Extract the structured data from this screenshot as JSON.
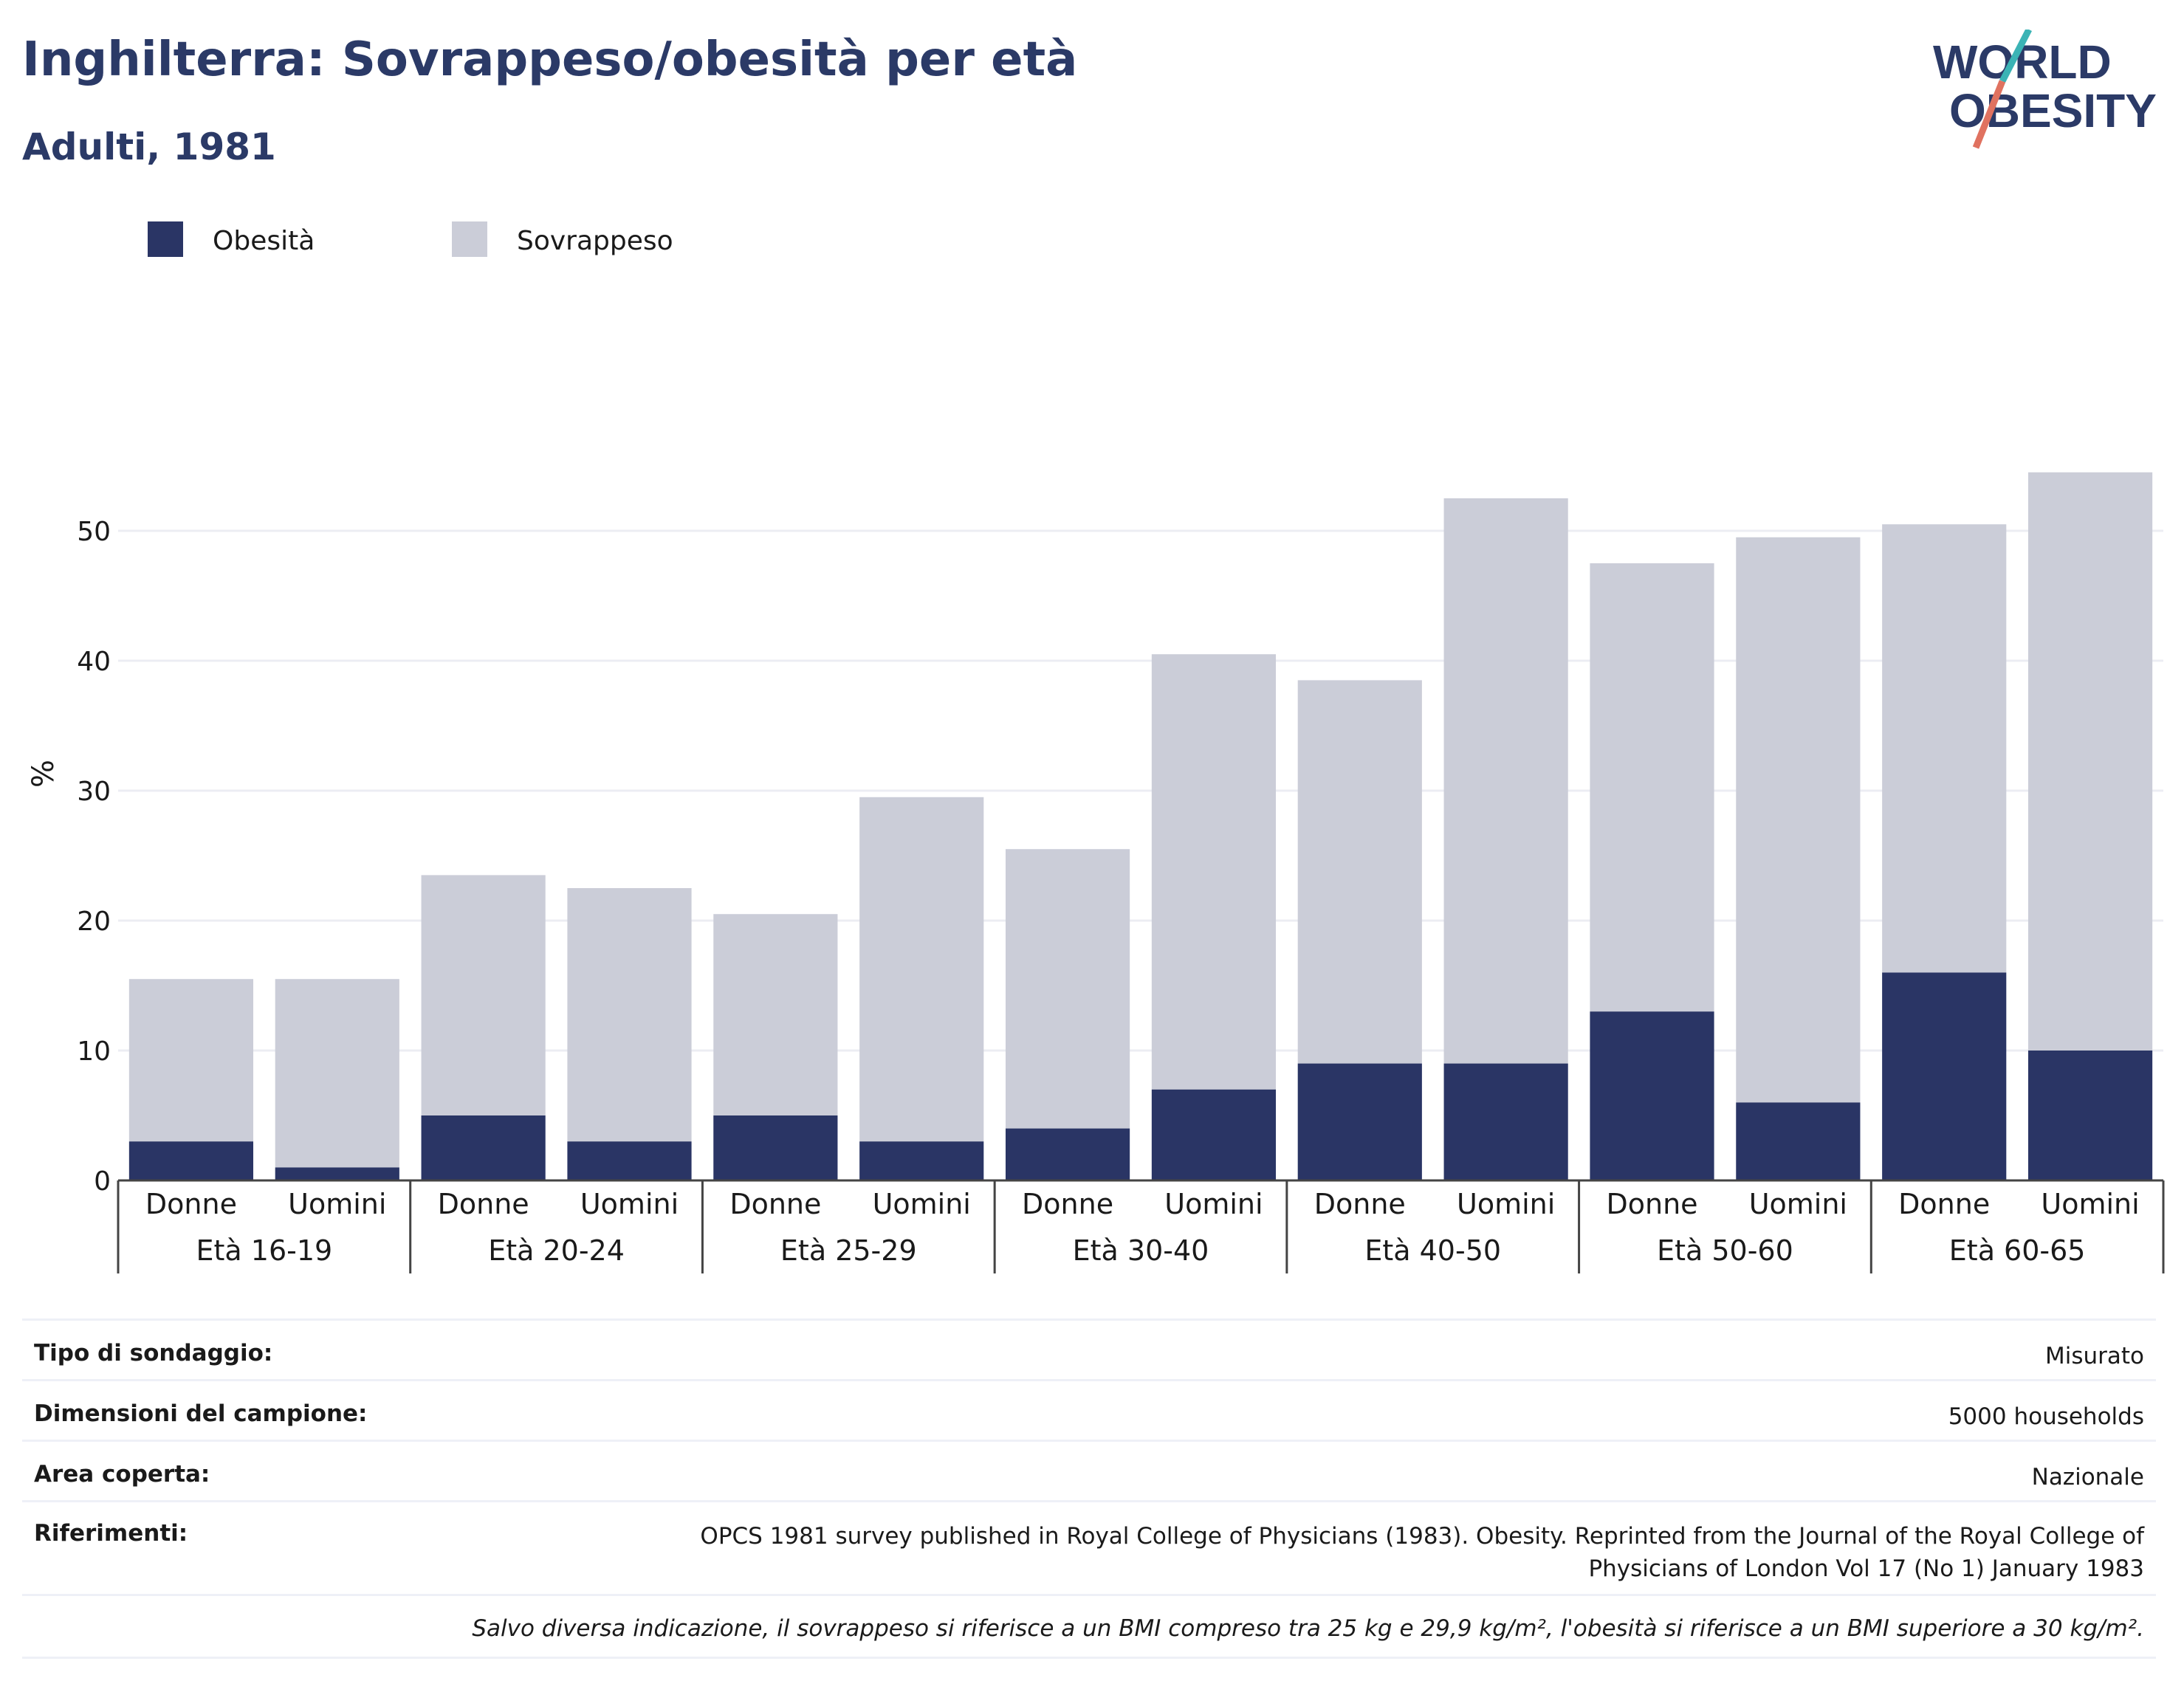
{
  "title": "Inghilterra: Sovrappeso/obesità per età",
  "subtitle": "Adulti, 1981",
  "logo": {
    "line1": "WORLD",
    "line2": "OBESITY"
  },
  "colors": {
    "obesity": "#2a3565",
    "overweight": "#cbcdd8",
    "title": "#2b3a67",
    "grid": "#ecedf3"
  },
  "chart_data": {
    "type": "bar",
    "stacked": true,
    "ylabel": "%",
    "ylim": [
      0,
      55
    ],
    "yticks": [
      0,
      10,
      20,
      30,
      40,
      50
    ],
    "legend": [
      "Obesità",
      "Sovrappeso"
    ],
    "legend_position": "top-left",
    "groups": [
      "Età 16-19",
      "Età 20-24",
      "Età 25-29",
      "Età 30-40",
      "Età 40-50",
      "Età 50-60",
      "Età 60-65"
    ],
    "categories": [
      "Donne",
      "Uomini",
      "Donne",
      "Uomini",
      "Donne",
      "Uomini",
      "Donne",
      "Uomini",
      "Donne",
      "Uomini",
      "Donne",
      "Uomini",
      "Donne",
      "Uomini"
    ],
    "series": [
      {
        "name": "Obesità",
        "values": [
          3,
          1,
          5,
          3,
          5,
          3,
          4,
          7,
          9,
          9,
          13,
          6,
          16,
          10
        ]
      },
      {
        "name": "Sovrappeso",
        "values": [
          12.5,
          14.5,
          18.5,
          19.5,
          15.5,
          26.5,
          21.5,
          33.5,
          29.5,
          43.5,
          34.5,
          43.5,
          34.5,
          44.5
        ]
      }
    ]
  },
  "info": {
    "survey_type_label": "Tipo di sondaggio:",
    "survey_type_value": "Misurato",
    "sample_size_label": "Dimensioni del campione:",
    "sample_size_value": "5000 households",
    "area_label": "Area coperta:",
    "area_value": "Nazionale",
    "references_label": "Riferimenti:",
    "references_line1": "OPCS 1981 survey published in Royal College of Physicians (1983). Obesity. Reprinted from the Journal of the Royal College of",
    "references_line2": "Physicians of London Vol 17 (No 1) January 1983",
    "note": "Salvo diversa indicazione, il sovrappeso si riferisce a un BMI compreso tra 25 kg e 29,9 kg/m², l'obesità si riferisce a un BMI superiore a 30 kg/m²."
  }
}
